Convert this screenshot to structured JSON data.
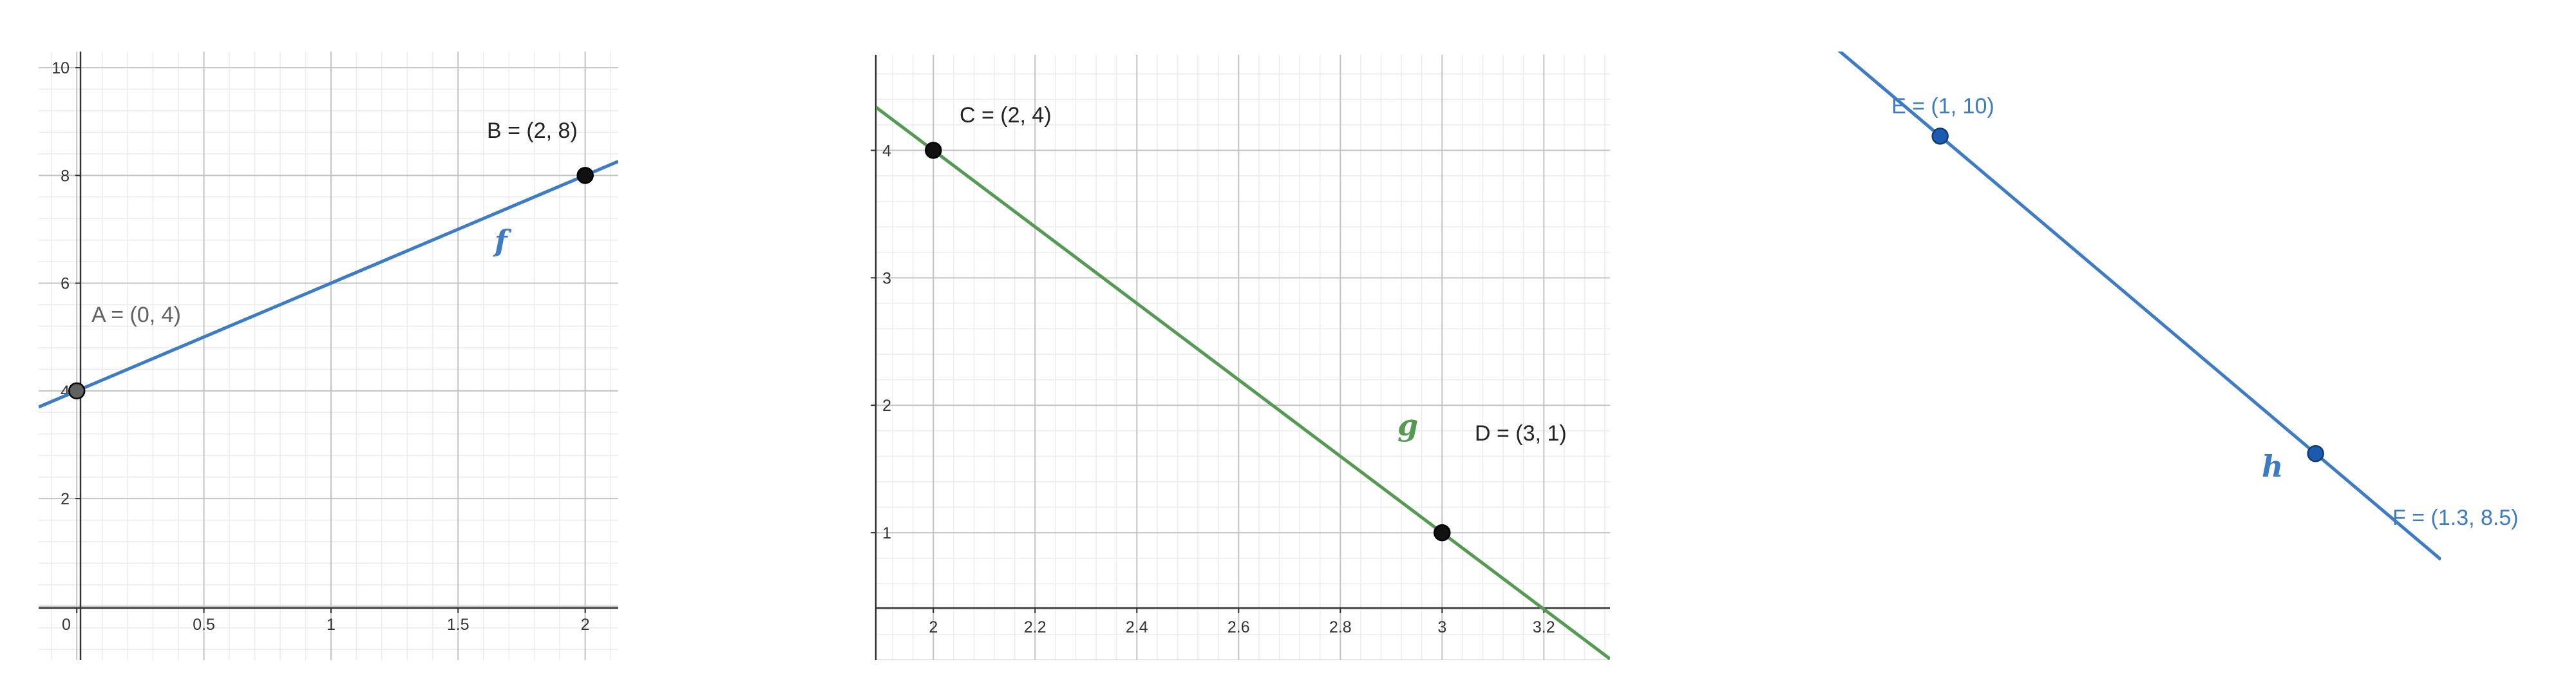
{
  "colors": {
    "blue": "#3d7cc4",
    "green": "#559a52",
    "point_black": "#111111",
    "point_grey": "#616161",
    "point_blue": "#1b5aad",
    "label_blue": "#3d7cc4",
    "label_grey": "#616161",
    "label_black": "#222222"
  },
  "chart_data": [
    {
      "type": "line",
      "grid": true,
      "xlim": [
        -0.15,
        2.13
      ],
      "ylim": [
        -1,
        10.3
      ],
      "x_ticks": [
        {
          "v": 0,
          "label": "0"
        },
        {
          "v": 0.5,
          "label": "0.5"
        },
        {
          "v": 1,
          "label": "1"
        },
        {
          "v": 1.5,
          "label": "1.5"
        },
        {
          "v": 2,
          "label": "2"
        }
      ],
      "y_ticks": [
        {
          "v": 2,
          "label": "2"
        },
        {
          "v": 4,
          "label": "4"
        },
        {
          "v": 6,
          "label": "6"
        },
        {
          "v": 8,
          "label": "8"
        },
        {
          "v": 10,
          "label": "10"
        }
      ],
      "series": [
        {
          "name": "f",
          "color": "blue",
          "slope": 2,
          "intercept": 4
        }
      ],
      "points": [
        {
          "label": "A = (0, 4)",
          "x": 0,
          "y": 4,
          "style": "grey"
        },
        {
          "label": "B = (2, 8)",
          "x": 2,
          "y": 8,
          "style": "black"
        }
      ]
    },
    {
      "type": "line",
      "grid": true,
      "xlim": [
        1.887,
        3.33
      ],
      "ylim": [
        0,
        4.75
      ],
      "x_ticks": [
        {
          "v": 2,
          "label": "2"
        },
        {
          "v": 2.2,
          "label": "2.2"
        },
        {
          "v": 2.4,
          "label": "2.4"
        },
        {
          "v": 2.6,
          "label": "2.6"
        },
        {
          "v": 2.8,
          "label": "2.8"
        },
        {
          "v": 3,
          "label": "3"
        },
        {
          "v": 3.2,
          "label": "3.2"
        }
      ],
      "y_ticks": [
        {
          "v": 1,
          "label": "1"
        },
        {
          "v": 2,
          "label": "2"
        },
        {
          "v": 3,
          "label": "3"
        },
        {
          "v": 4,
          "label": "4"
        }
      ],
      "series": [
        {
          "name": "g",
          "color": "green",
          "slope": -3,
          "intercept": 10
        }
      ],
      "points": [
        {
          "label": "C = (2, 4)",
          "x": 2,
          "y": 4,
          "style": "black"
        },
        {
          "label": "D = (3, 1)",
          "x": 3,
          "y": 1,
          "style": "black"
        }
      ]
    },
    {
      "type": "line",
      "grid": false,
      "xlim": [
        0.87,
        1.4
      ],
      "ylim": [
        7.6,
        10.4
      ],
      "series": [
        {
          "name": "h",
          "color": "blue",
          "slope": -5,
          "intercept": 15
        }
      ],
      "points": [
        {
          "label": "E = (1, 10)",
          "x": 1,
          "y": 10,
          "style": "blue"
        },
        {
          "label": "F = (1.3, 8.5)",
          "x": 1.3,
          "y": 8.5,
          "style": "blue"
        }
      ]
    }
  ]
}
